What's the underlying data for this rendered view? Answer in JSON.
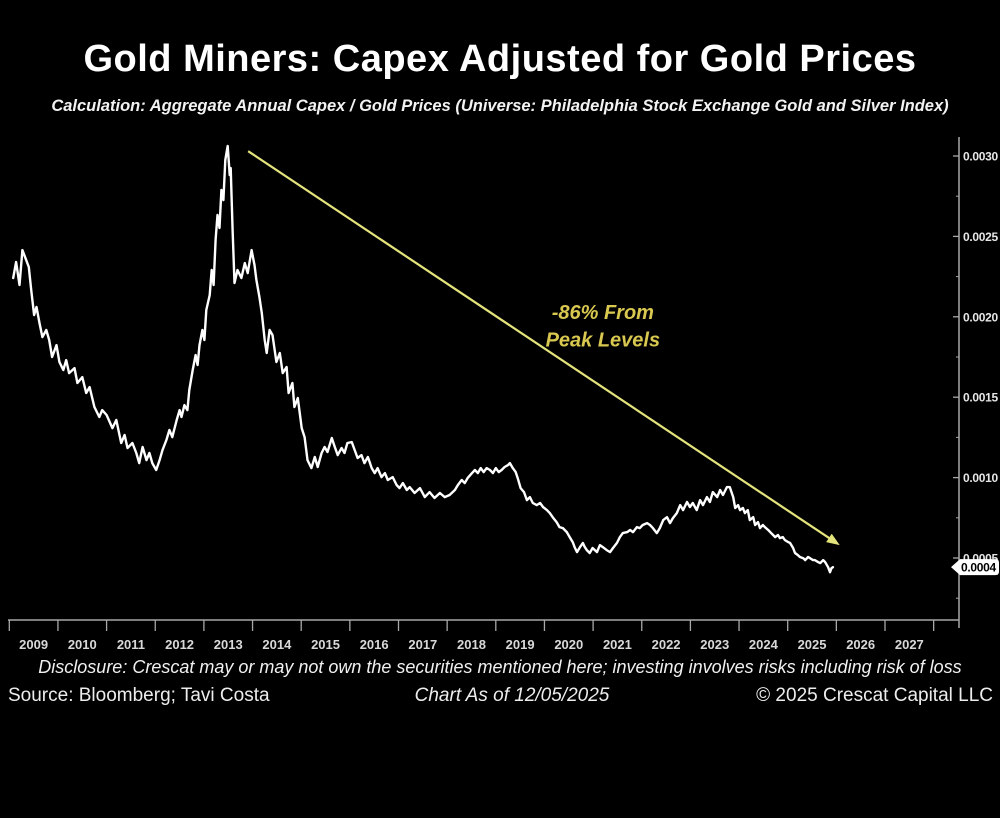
{
  "header": {
    "title": "Gold Miners: Capex Adjusted for Gold Prices",
    "subtitle": "Calculation: Aggregate Annual Capex / Gold Prices (Universe: Philadelphia Stock Exchange Gold and Silver Index)"
  },
  "footer": {
    "disclosure": "Disclosure: Crescat may or may not own the securities mentioned here; investing involves risks including risk of loss",
    "source": "Source: Bloomberg; Tavi Costa",
    "as_of": "Chart As of 12/05/2025",
    "copyright": "© 2025 Crescat Capital LLC"
  },
  "colors": {
    "background": "#000000",
    "line": "#ffffff",
    "axis": "#a8a8a8",
    "x_tick_label": "#d9d9d9",
    "y_tick_label": "#e6e6e6",
    "arrow_yellow": "#e4e47c",
    "annotation_yellow": "#d9c850",
    "badge_bg": "#ffffff",
    "badge_text": "#000000"
  },
  "chart_data": {
    "type": "line",
    "title": "Gold Miners: Capex Adjusted for Gold Prices",
    "xlabel": "",
    "ylabel": "",
    "grid": false,
    "legend": "none",
    "x_years": [
      "2009",
      "2010",
      "2011",
      "2012",
      "2013",
      "2014",
      "2015",
      "2016",
      "2017",
      "2018",
      "2019",
      "2020",
      "2021",
      "2022",
      "2023",
      "2024",
      "2025",
      "2026",
      "2027"
    ],
    "y_ticks": [
      {
        "label": "0.0005",
        "value": 0.0005
      },
      {
        "label": "0.0010",
        "value": 0.001
      },
      {
        "label": "0.0015",
        "value": 0.0015
      },
      {
        "label": "0.0020",
        "value": 0.002
      },
      {
        "label": "0.0025",
        "value": 0.0025
      },
      {
        "label": "0.0030",
        "value": 0.003
      }
    ],
    "y_minor_tick_values": [
      0.00025,
      0.00075,
      0.00125,
      0.00175,
      0.00225,
      0.00275
    ],
    "xlim": [
      2008.97,
      2028.52
    ],
    "ylim": [
      0.000114,
      0.003118
    ],
    "annotation": {
      "line1": "-86% From",
      "line2": "Peak Levels",
      "x_year": 2021.2,
      "value_line1": 0.00203,
      "value_line2": 0.00186
    },
    "trend_arrow": {
      "from_year": 2013.91,
      "from_value": 0.00303,
      "to_year": 2026.07,
      "to_value": 0.00058
    },
    "last_value_label": {
      "text": "0.0004",
      "value": 0.000443
    },
    "series": [
      {
        "name": "Aggregate Annual Capex / Gold Prices",
        "color": "#ffffff",
        "value_scale": 1e-06,
        "points": [
          [
            2009.08,
            2241
          ],
          [
            2009.14,
            2341
          ],
          [
            2009.21,
            2198
          ],
          [
            2009.27,
            2415
          ],
          [
            2009.33,
            2366
          ],
          [
            2009.4,
            2310
          ],
          [
            2009.45,
            2167
          ],
          [
            2009.51,
            2011
          ],
          [
            2009.56,
            2061
          ],
          [
            2009.62,
            1961
          ],
          [
            2009.68,
            1874
          ],
          [
            2009.76,
            1918
          ],
          [
            2009.82,
            1856
          ],
          [
            2009.88,
            1750
          ],
          [
            2009.97,
            1824
          ],
          [
            2010.03,
            1719
          ],
          [
            2010.11,
            1669
          ],
          [
            2010.17,
            1731
          ],
          [
            2010.23,
            1650
          ],
          [
            2010.34,
            1681
          ],
          [
            2010.4,
            1588
          ],
          [
            2010.5,
            1625
          ],
          [
            2010.58,
            1526
          ],
          [
            2010.65,
            1563
          ],
          [
            2010.75,
            1439
          ],
          [
            2010.85,
            1377
          ],
          [
            2010.91,
            1420
          ],
          [
            2011.0,
            1389
          ],
          [
            2011.12,
            1308
          ],
          [
            2011.2,
            1358
          ],
          [
            2011.3,
            1215
          ],
          [
            2011.37,
            1265
          ],
          [
            2011.43,
            1184
          ],
          [
            2011.53,
            1215
          ],
          [
            2011.61,
            1153
          ],
          [
            2011.67,
            1090
          ],
          [
            2011.74,
            1190
          ],
          [
            2011.82,
            1109
          ],
          [
            2011.88,
            1153
          ],
          [
            2011.94,
            1090
          ],
          [
            2012.02,
            1047
          ],
          [
            2012.09,
            1109
          ],
          [
            2012.15,
            1171
          ],
          [
            2012.23,
            1234
          ],
          [
            2012.29,
            1296
          ],
          [
            2012.35,
            1252
          ],
          [
            2012.44,
            1358
          ],
          [
            2012.5,
            1420
          ],
          [
            2012.54,
            1377
          ],
          [
            2012.6,
            1451
          ],
          [
            2012.66,
            1420
          ],
          [
            2012.7,
            1545
          ],
          [
            2012.77,
            1669
          ],
          [
            2012.83,
            1762
          ],
          [
            2012.87,
            1700
          ],
          [
            2012.91,
            1824
          ],
          [
            2012.97,
            1918
          ],
          [
            2013.01,
            1856
          ],
          [
            2013.05,
            2042
          ],
          [
            2013.12,
            2135
          ],
          [
            2013.16,
            2291
          ],
          [
            2013.2,
            2198
          ],
          [
            2013.24,
            2478
          ],
          [
            2013.28,
            2633
          ],
          [
            2013.32,
            2552
          ],
          [
            2013.36,
            2789
          ],
          [
            2013.4,
            2726
          ],
          [
            2013.44,
            2975
          ],
          [
            2013.49,
            3062
          ],
          [
            2013.53,
            2882
          ],
          [
            2013.55,
            2925
          ],
          [
            2013.59,
            2540
          ],
          [
            2013.63,
            2210
          ],
          [
            2013.69,
            2291
          ],
          [
            2013.77,
            2241
          ],
          [
            2013.84,
            2334
          ],
          [
            2013.9,
            2272
          ],
          [
            2013.98,
            2415
          ],
          [
            2014.04,
            2322
          ],
          [
            2014.08,
            2229
          ],
          [
            2014.14,
            2123
          ],
          [
            2014.19,
            2023
          ],
          [
            2014.25,
            1856
          ],
          [
            2014.29,
            1775
          ],
          [
            2014.35,
            1918
          ],
          [
            2014.41,
            1887
          ],
          [
            2014.49,
            1719
          ],
          [
            2014.56,
            1775
          ],
          [
            2014.62,
            1650
          ],
          [
            2014.7,
            1688
          ],
          [
            2014.74,
            1526
          ],
          [
            2014.82,
            1588
          ],
          [
            2014.86,
            1439
          ],
          [
            2014.93,
            1495
          ],
          [
            2015.01,
            1308
          ],
          [
            2015.07,
            1252
          ],
          [
            2015.13,
            1109
          ],
          [
            2015.21,
            1059
          ],
          [
            2015.28,
            1128
          ],
          [
            2015.34,
            1066
          ],
          [
            2015.42,
            1153
          ],
          [
            2015.48,
            1190
          ],
          [
            2015.54,
            1159
          ],
          [
            2015.63,
            1246
          ],
          [
            2015.69,
            1190
          ],
          [
            2015.75,
            1140
          ],
          [
            2015.83,
            1184
          ],
          [
            2015.89,
            1153
          ],
          [
            2015.95,
            1215
          ],
          [
            2016.04,
            1221
          ],
          [
            2016.1,
            1171
          ],
          [
            2016.16,
            1122
          ],
          [
            2016.24,
            1140
          ],
          [
            2016.3,
            1090
          ],
          [
            2016.37,
            1128
          ],
          [
            2016.45,
            1059
          ],
          [
            2016.51,
            1028
          ],
          [
            2016.57,
            1059
          ],
          [
            2016.65,
            1003
          ],
          [
            2016.72,
            1028
          ],
          [
            2016.78,
            985
          ],
          [
            2016.88,
            1003
          ],
          [
            2016.96,
            954
          ],
          [
            2017.02,
            935
          ],
          [
            2017.09,
            966
          ],
          [
            2017.17,
            923
          ],
          [
            2017.23,
            941
          ],
          [
            2017.33,
            904
          ],
          [
            2017.44,
            935
          ],
          [
            2017.54,
            879
          ],
          [
            2017.64,
            910
          ],
          [
            2017.74,
            873
          ],
          [
            2017.85,
            904
          ],
          [
            2017.95,
            879
          ],
          [
            2018.05,
            892
          ],
          [
            2018.16,
            923
          ],
          [
            2018.22,
            954
          ],
          [
            2018.3,
            985
          ],
          [
            2018.36,
            966
          ],
          [
            2018.42,
            997
          ],
          [
            2018.51,
            1028
          ],
          [
            2018.57,
            1047
          ],
          [
            2018.63,
            1028
          ],
          [
            2018.69,
            1059
          ],
          [
            2018.75,
            1034
          ],
          [
            2018.81,
            1059
          ],
          [
            2018.88,
            1047
          ],
          [
            2018.94,
            1028
          ],
          [
            2019.0,
            1059
          ],
          [
            2019.06,
            1034
          ],
          [
            2019.12,
            1047
          ],
          [
            2019.18,
            1066
          ],
          [
            2019.25,
            1078
          ],
          [
            2019.29,
            1090
          ],
          [
            2019.35,
            1059
          ],
          [
            2019.41,
            1034
          ],
          [
            2019.45,
            997
          ],
          [
            2019.51,
            935
          ],
          [
            2019.58,
            910
          ],
          [
            2019.64,
            860
          ],
          [
            2019.7,
            879
          ],
          [
            2019.76,
            842
          ],
          [
            2019.84,
            829
          ],
          [
            2019.91,
            842
          ],
          [
            2019.97,
            817
          ],
          [
            2020.05,
            798
          ],
          [
            2020.11,
            779
          ],
          [
            2020.17,
            754
          ],
          [
            2020.25,
            723
          ],
          [
            2020.31,
            692
          ],
          [
            2020.38,
            686
          ],
          [
            2020.46,
            661
          ],
          [
            2020.52,
            630
          ],
          [
            2020.58,
            599
          ],
          [
            2020.62,
            568
          ],
          [
            2020.67,
            537
          ],
          [
            2020.73,
            568
          ],
          [
            2020.79,
            593
          ],
          [
            2020.83,
            568
          ],
          [
            2020.87,
            549
          ],
          [
            2020.93,
            531
          ],
          [
            2020.99,
            562
          ],
          [
            2021.08,
            537
          ],
          [
            2021.14,
            580
          ],
          [
            2021.2,
            568
          ],
          [
            2021.28,
            549
          ],
          [
            2021.35,
            537
          ],
          [
            2021.41,
            562
          ],
          [
            2021.49,
            593
          ],
          [
            2021.55,
            630
          ],
          [
            2021.61,
            655
          ],
          [
            2021.7,
            661
          ],
          [
            2021.76,
            674
          ],
          [
            2021.82,
            661
          ],
          [
            2021.9,
            692
          ],
          [
            2021.96,
            686
          ],
          [
            2022.02,
            705
          ],
          [
            2022.11,
            717
          ],
          [
            2022.17,
            705
          ],
          [
            2022.23,
            686
          ],
          [
            2022.31,
            655
          ],
          [
            2022.37,
            686
          ],
          [
            2022.44,
            736
          ],
          [
            2022.52,
            754
          ],
          [
            2022.58,
            717
          ],
          [
            2022.64,
            748
          ],
          [
            2022.72,
            779
          ],
          [
            2022.79,
            829
          ],
          [
            2022.85,
            798
          ],
          [
            2022.93,
            848
          ],
          [
            2022.99,
            817
          ],
          [
            2023.05,
            842
          ],
          [
            2023.13,
            798
          ],
          [
            2023.2,
            860
          ],
          [
            2023.26,
            829
          ],
          [
            2023.34,
            879
          ],
          [
            2023.4,
            848
          ],
          [
            2023.46,
            910
          ],
          [
            2023.55,
            879
          ],
          [
            2023.61,
            923
          ],
          [
            2023.67,
            892
          ],
          [
            2023.75,
            941
          ],
          [
            2023.81,
            941
          ],
          [
            2023.88,
            879
          ],
          [
            2023.92,
            811
          ],
          [
            2023.98,
            829
          ],
          [
            2024.02,
            798
          ],
          [
            2024.08,
            811
          ],
          [
            2024.12,
            779
          ],
          [
            2024.18,
            798
          ],
          [
            2024.22,
            736
          ],
          [
            2024.29,
            754
          ],
          [
            2024.33,
            705
          ],
          [
            2024.39,
            723
          ],
          [
            2024.43,
            686
          ],
          [
            2024.49,
            705
          ],
          [
            2024.53,
            692
          ],
          [
            2024.6,
            674
          ],
          [
            2024.64,
            661
          ],
          [
            2024.7,
            643
          ],
          [
            2024.74,
            630
          ],
          [
            2024.8,
            643
          ],
          [
            2024.84,
            624
          ],
          [
            2024.9,
            630
          ],
          [
            2024.94,
            612
          ],
          [
            2025.01,
            599
          ],
          [
            2025.05,
            593
          ],
          [
            2025.11,
            562
          ],
          [
            2025.15,
            531
          ],
          [
            2025.21,
            518
          ],
          [
            2025.25,
            506
          ],
          [
            2025.32,
            499
          ],
          [
            2025.36,
            487
          ],
          [
            2025.42,
            506
          ],
          [
            2025.46,
            499
          ],
          [
            2025.52,
            487
          ],
          [
            2025.56,
            487
          ],
          [
            2025.63,
            474
          ],
          [
            2025.67,
            468
          ],
          [
            2025.73,
            487
          ],
          [
            2025.77,
            474
          ],
          [
            2025.83,
            443
          ],
          [
            2025.87,
            412
          ],
          [
            2025.9,
            437
          ],
          [
            2025.93,
            443
          ]
        ]
      }
    ]
  }
}
